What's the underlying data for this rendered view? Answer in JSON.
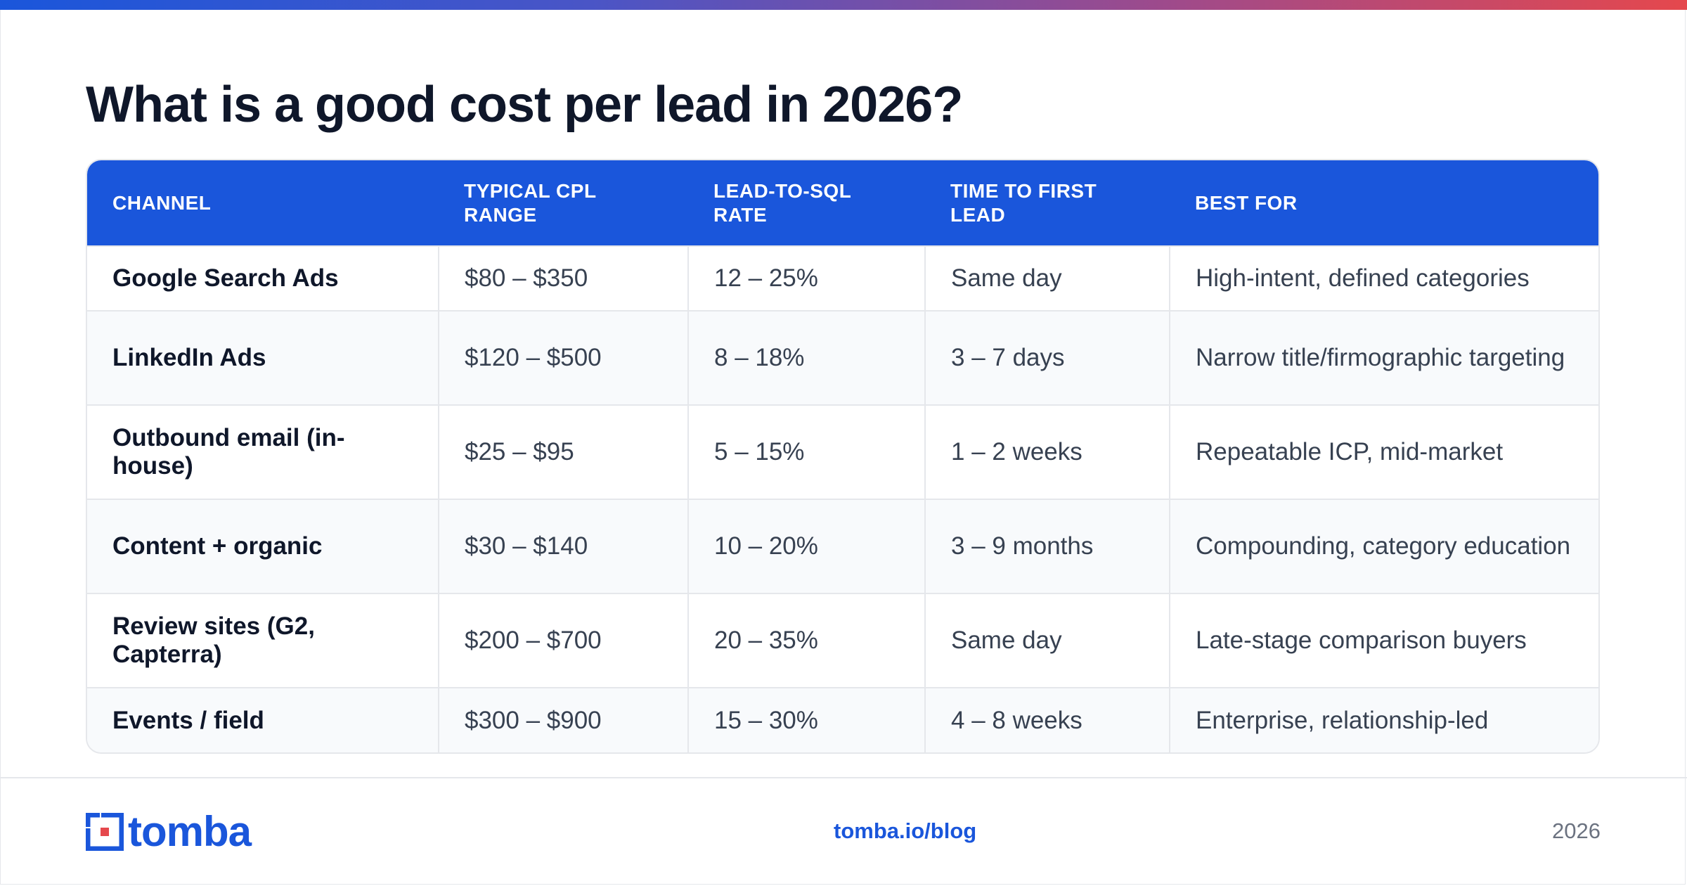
{
  "title": "What is a good cost per lead in 2026?",
  "colors": {
    "accent": "#1a56db",
    "header_text": "#ffffff",
    "gradient_end": "#e5484d"
  },
  "table": {
    "headers": [
      "CHANNEL",
      "TYPICAL CPL RANGE",
      "LEAD-TO-SQL RATE",
      "TIME TO FIRST LEAD",
      "BEST FOR"
    ],
    "rows": [
      [
        "Google Search Ads",
        "$80 – $350",
        "12 – 25%",
        "Same day",
        "High-intent, defined categories"
      ],
      [
        "LinkedIn Ads",
        "$120 – $500",
        "8 – 18%",
        "3 – 7 days",
        "Narrow title/firmographic targeting"
      ],
      [
        "Outbound email (in-house)",
        "$25 – $95",
        "5 – 15%",
        "1 – 2 weeks",
        "Repeatable ICP, mid-market"
      ],
      [
        "Content + organic",
        "$30 – $140",
        "10 – 20%",
        "3 – 9 months",
        "Compounding, category education"
      ],
      [
        "Review sites (G2, Capterra)",
        "$200 – $700",
        "20 – 35%",
        "Same day",
        "Late-stage comparison buyers"
      ],
      [
        "Events / field",
        "$300 – $900",
        "15 – 30%",
        "4 – 8 weeks",
        "Enterprise, relationship-led"
      ]
    ]
  },
  "footer": {
    "logo_text": "tomba",
    "logo_icon": "tomba-logo-icon",
    "url": "tomba.io/blog",
    "year": "2026"
  }
}
